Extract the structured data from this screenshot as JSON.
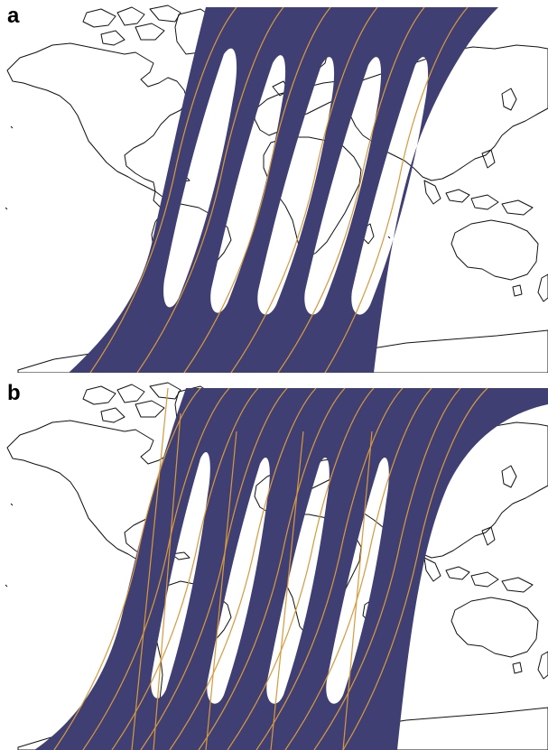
{
  "panels": [
    {
      "label": "a"
    },
    {
      "label": "b"
    }
  ],
  "colors": {
    "swath": "#403f74",
    "ground_track": "#d89a3c",
    "coastline": "#111111",
    "background": "#ffffff"
  },
  "icons": [
    "world-map",
    "coverage-swath",
    "ground-track"
  ]
}
